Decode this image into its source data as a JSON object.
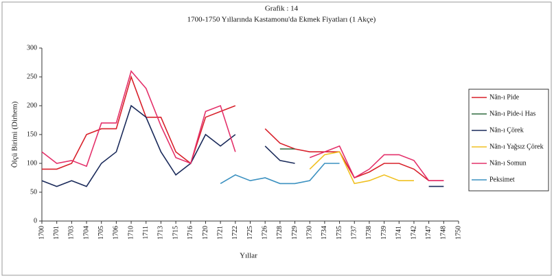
{
  "chart_data": {
    "type": "line",
    "title": "Grafik : 14",
    "subtitle": "1700-1750 Yıllarında Kastamonu'da Ekmek Fiyatları (1 Akçe)",
    "x_label": "Yıllar",
    "y_label": "Ölçü Birimi (Dirhem)",
    "categories": [
      "1700",
      "1701",
      "1703",
      "1704",
      "1705",
      "1706",
      "1710",
      "1711",
      "1713",
      "1715",
      "1716",
      "1720",
      "1721",
      "1722",
      "1725",
      "1726",
      "1728",
      "1729",
      "1730",
      "1734",
      "1735",
      "1737",
      "1738",
      "1739",
      "1741",
      "1742",
      "1747",
      "1748",
      "1750"
    ],
    "ylim": [
      0,
      300
    ],
    "yticks": [
      0,
      50,
      100,
      150,
      200,
      250,
      300
    ],
    "legend": "right",
    "series": [
      {
        "name": "Nân-ı Pide",
        "color": "#d8202a",
        "values": [
          90,
          90,
          100,
          150,
          160,
          160,
          250,
          180,
          180,
          120,
          100,
          180,
          190,
          200,
          null,
          160,
          135,
          125,
          120,
          120,
          120,
          75,
          85,
          100,
          100,
          90,
          70,
          70,
          null
        ]
      },
      {
        "name": "Nân-ı Pide-i Has",
        "color": "#2e6a3e",
        "values": [
          null,
          null,
          null,
          null,
          null,
          null,
          null,
          null,
          null,
          null,
          null,
          null,
          null,
          null,
          null,
          null,
          125,
          125,
          null,
          null,
          null,
          null,
          null,
          null,
          null,
          null,
          null,
          null,
          null
        ]
      },
      {
        "name": "Nân-ı Çörek",
        "color": "#1a2a5a",
        "values": [
          70,
          60,
          70,
          60,
          100,
          120,
          200,
          180,
          120,
          80,
          100,
          150,
          130,
          150,
          null,
          130,
          105,
          100,
          null,
          null,
          null,
          null,
          null,
          null,
          null,
          null,
          60,
          60,
          null
        ]
      },
      {
        "name": "Nân-ı Yağsız Çörek",
        "color": "#f0c020",
        "values": [
          null,
          null,
          null,
          null,
          null,
          null,
          null,
          null,
          null,
          null,
          null,
          null,
          null,
          null,
          null,
          null,
          null,
          null,
          90,
          115,
          120,
          65,
          70,
          80,
          70,
          70,
          null,
          null,
          null
        ]
      },
      {
        "name": "Nân-ı Somun",
        "color": "#e4306a",
        "values": [
          120,
          100,
          105,
          95,
          170,
          170,
          260,
          230,
          165,
          110,
          100,
          190,
          200,
          120,
          null,
          null,
          null,
          null,
          110,
          120,
          130,
          75,
          90,
          115,
          115,
          105,
          70,
          70,
          null
        ]
      },
      {
        "name": "Peksimet",
        "color": "#3a90c0",
        "values": [
          null,
          null,
          null,
          null,
          null,
          null,
          null,
          null,
          null,
          null,
          null,
          null,
          65,
          80,
          70,
          75,
          65,
          65,
          70,
          100,
          100,
          null,
          null,
          null,
          null,
          null,
          null,
          null,
          null
        ]
      }
    ]
  }
}
